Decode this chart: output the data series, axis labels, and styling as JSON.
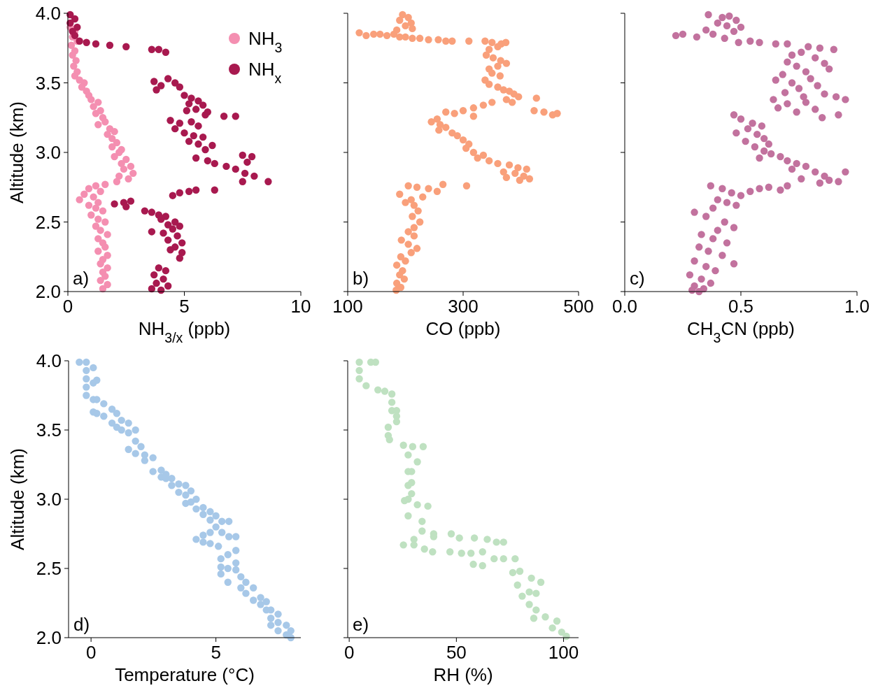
{
  "chart_data": [
    {
      "type": "scatter",
      "xlabel": "NH$_{3/x}$ (ppb)",
      "ylabel": "Altitude (km)",
      "xlim": [
        0,
        10
      ],
      "xticks": [
        0,
        5,
        10
      ],
      "ylim": [
        2,
        4
      ],
      "yticks": [
        {
          "value": 2,
          "label": "2.0"
        },
        2.5,
        {
          "value": 3,
          "label": "3.0"
        },
        3.5,
        {
          "value": 4,
          "label": "4.0"
        }
      ],
      "marker": "circle",
      "legend": "top right",
      "annotations": [
        "a)"
      ],
      "series": [
        {
          "name": "NH$_{3}$",
          "color": "#f48fb1",
          "x": [
            0.1,
            0.3,
            0.2,
            0.4,
            0.15,
            0.3,
            0.2,
            0.35,
            0.25,
            0.4,
            0.3,
            0.5,
            0.7,
            0.6,
            0.8,
            0.9,
            1.0,
            1.3,
            1.1,
            1.4,
            1.2,
            1.5,
            1.6,
            1.3,
            1.8,
            2.0,
            1.7,
            1.9,
            2.1,
            1.9,
            2.3,
            2.2,
            2.0,
            2.5,
            2.3,
            2.7,
            2.4,
            2.8,
            2.2,
            2.6,
            2.1,
            1.6,
            1.2,
            0.9,
            1.4,
            0.7,
            1.1,
            0.5,
            1.3,
            0.9,
            1.2,
            1.5,
            1.0,
            1.3,
            1.6,
            1.2,
            1.4,
            1.7,
            1.3,
            1.5,
            1.6,
            1.3,
            1.7,
            1.5,
            1.4,
            1.7,
            1.5,
            1.6,
            1.4,
            1.7,
            1.5
          ],
          "values": [
            3.9,
            3.87,
            3.83,
            3.8,
            3.77,
            3.73,
            3.7,
            3.66,
            3.62,
            3.58,
            3.55,
            3.52,
            3.5,
            3.47,
            3.44,
            3.41,
            3.38,
            3.36,
            3.33,
            3.3,
            3.28,
            3.25,
            3.22,
            3.2,
            3.17,
            3.15,
            3.13,
            3.1,
            3.07,
            3.04,
            3.02,
            3.0,
            2.97,
            2.95,
            2.92,
            2.9,
            2.88,
            2.85,
            2.83,
            2.81,
            2.79,
            2.77,
            2.76,
            2.74,
            2.72,
            2.7,
            2.68,
            2.66,
            2.64,
            2.62,
            2.6,
            2.58,
            2.55,
            2.52,
            2.5,
            2.47,
            2.44,
            2.41,
            2.38,
            2.35,
            2.32,
            2.29,
            2.26,
            2.23,
            2.2,
            2.17,
            2.14,
            2.11,
            2.08,
            2.05,
            2.02
          ]
        },
        {
          "name": "NH$_{x}$",
          "color": "#a8194f",
          "x": [
            0.1,
            0.3,
            0.1,
            0.4,
            0.2,
            0.3,
            0.5,
            0.8,
            1.2,
            1.8,
            2.5,
            3.6,
            3.9,
            4.2,
            3.7,
            4.0,
            4.3,
            4.6,
            4.8,
            3.8,
            5.0,
            5.3,
            5.6,
            5.2,
            5.8,
            5.5,
            5.1,
            6.0,
            5.9,
            6.7,
            7.2,
            4.4,
            4.8,
            5.3,
            5.6,
            4.6,
            5.0,
            5.4,
            5.8,
            5.2,
            5.6,
            6.2,
            5.9,
            5.5,
            6.0,
            6.3,
            6.8,
            7.5,
            7.9,
            7.7,
            7.2,
            7.6,
            8.0,
            7.5,
            8.6,
            6.3,
            4.8,
            5.2,
            5.5,
            4.5,
            2.0,
            2.4,
            2.7,
            2.5,
            3.3,
            3.6,
            3.9,
            4.2,
            4.0,
            4.6,
            4.3,
            4.8,
            4.5,
            3.6,
            4.1,
            4.7,
            4.3,
            4.9,
            4.6,
            4.4,
            4.9,
            4.8,
            3.9,
            4.2,
            3.7,
            4.1,
            3.8,
            4.3,
            3.6,
            4.0
          ],
          "values": [
            3.99,
            3.96,
            3.93,
            3.9,
            3.87,
            3.84,
            3.8,
            3.79,
            3.78,
            3.77,
            3.76,
            3.74,
            3.74,
            3.72,
            3.51,
            3.48,
            3.53,
            3.5,
            3.47,
            3.45,
            3.41,
            3.39,
            3.37,
            3.35,
            3.34,
            3.31,
            3.3,
            3.29,
            3.27,
            3.26,
            3.26,
            3.23,
            3.21,
            3.22,
            3.19,
            3.17,
            3.14,
            3.12,
            3.11,
            3.08,
            3.06,
            3.05,
            3.02,
            2.96,
            2.94,
            2.92,
            2.9,
            2.98,
            2.97,
            2.93,
            2.88,
            2.85,
            2.83,
            2.79,
            2.79,
            2.73,
            2.71,
            2.72,
            2.73,
            2.69,
            2.63,
            2.64,
            2.65,
            2.61,
            2.58,
            2.57,
            2.55,
            2.54,
            2.52,
            2.5,
            2.48,
            2.47,
            2.45,
            2.43,
            2.42,
            2.4,
            2.37,
            2.35,
            2.32,
            2.3,
            2.28,
            2.24,
            2.17,
            2.15,
            2.12,
            2.09,
            2.06,
            2.04,
            2.02,
            2.01
          ]
        }
      ]
    },
    {
      "type": "scatter",
      "xlabel": "CO (ppb)",
      "xlim": [
        100,
        500
      ],
      "xticks": [
        100,
        300,
        500
      ],
      "ylim": [
        2,
        4
      ],
      "yticks": [
        2,
        2.5,
        3,
        3.5,
        4
      ],
      "tick_labels": "x",
      "marker": "circle",
      "annotations": [
        "b)"
      ],
      "series": [
        {
          "color": "#f9a07b",
          "x": [
            195,
            205,
            190,
            210,
            200,
            212,
            185,
            120,
            132,
            145,
            156,
            168,
            180,
            190,
            200,
            212,
            225,
            240,
            257,
            270,
            281,
            310,
            338,
            350,
            366,
            374,
            360,
            345,
            340,
            352,
            365,
            375,
            360,
            345,
            350,
            364,
            338,
            345,
            360,
            370,
            380,
            388,
            396,
            375,
            385,
            427,
            423,
            440,
            455,
            463,
            350,
            335,
            318,
            300,
            285,
            270,
            318,
            255,
            245,
            260,
            270,
            258,
            281,
            290,
            300,
            310,
            305,
            318,
            335,
            325,
            345,
            360,
            380,
            395,
            410,
            370,
            390,
            405,
            375,
            398,
            415,
            306,
            265,
            205,
            220,
            240,
            255,
            190,
            230,
            210,
            200,
            215,
            222,
            212,
            225,
            215,
            205,
            215,
            193,
            205,
            220,
            210,
            192,
            200,
            185,
            195,
            190,
            198,
            185,
            192,
            184
          ],
          "values": [
            3.99,
            3.97,
            3.95,
            3.93,
            3.91,
            3.89,
            3.88,
            3.86,
            3.84,
            3.85,
            3.85,
            3.84,
            3.85,
            3.83,
            3.83,
            3.82,
            3.82,
            3.81,
            3.81,
            3.8,
            3.8,
            3.8,
            3.8,
            3.79,
            3.78,
            3.79,
            3.76,
            3.74,
            3.7,
            3.68,
            3.66,
            3.64,
            3.62,
            3.6,
            3.57,
            3.55,
            3.52,
            3.49,
            3.47,
            3.45,
            3.44,
            3.42,
            3.4,
            3.38,
            3.36,
            3.39,
            3.3,
            3.29,
            3.27,
            3.28,
            3.36,
            3.34,
            3.32,
            3.3,
            3.28,
            3.29,
            3.26,
            3.24,
            3.22,
            3.2,
            3.18,
            3.16,
            3.14,
            3.12,
            3.09,
            3.06,
            3.03,
            3.0,
            2.98,
            2.96,
            2.94,
            2.92,
            2.91,
            2.89,
            2.88,
            2.86,
            2.85,
            2.83,
            2.82,
            2.8,
            2.81,
            2.76,
            2.77,
            2.76,
            2.75,
            2.74,
            2.72,
            2.7,
            2.68,
            2.66,
            2.64,
            2.62,
            2.58,
            2.54,
            2.5,
            2.46,
            2.43,
            2.4,
            2.37,
            2.34,
            2.31,
            2.28,
            2.25,
            2.22,
            2.19,
            2.15,
            2.12,
            2.09,
            2.06,
            2.03,
            2.01
          ]
        }
      ]
    },
    {
      "type": "scatter",
      "xlabel": "CH$_{3}$CN (ppb)",
      "xlim": [
        0,
        1
      ],
      "xticks": [
        {
          "value": 0,
          "label": "0.0"
        },
        0.5,
        {
          "value": 1,
          "label": "1.0"
        }
      ],
      "ylim": [
        2,
        4
      ],
      "yticks": [
        2,
        2.5,
        3,
        3.5,
        4
      ],
      "tick_labels": "x",
      "marker": "circle",
      "annotations": [
        "c)"
      ],
      "series": [
        {
          "color": "#c2729e",
          "x": [
            0.36,
            0.42,
            0.45,
            0.48,
            0.4,
            0.44,
            0.5,
            0.35,
            0.47,
            0.38,
            0.43,
            0.22,
            0.25,
            0.31,
            0.49,
            0.54,
            0.58,
            0.65,
            0.7,
            0.79,
            0.84,
            0.9,
            0.72,
            0.76,
            0.82,
            0.7,
            0.74,
            0.86,
            0.68,
            0.78,
            0.88,
            0.65,
            0.72,
            0.8,
            0.75,
            0.69,
            0.83,
            0.77,
            0.86,
            0.64,
            0.7,
            0.78,
            0.82,
            0.91,
            0.95,
            0.92,
            0.74,
            0.66,
            0.85,
            0.47,
            0.5,
            0.55,
            0.53,
            0.59,
            0.48,
            0.57,
            0.6,
            0.52,
            0.62,
            0.56,
            0.6,
            0.63,
            0.67,
            0.58,
            0.7,
            0.74,
            0.72,
            0.78,
            0.82,
            0.86,
            0.88,
            0.76,
            0.84,
            0.95,
            0.92,
            0.58,
            0.62,
            0.67,
            0.7,
            0.37,
            0.42,
            0.46,
            0.5,
            0.54,
            0.4,
            0.44,
            0.48,
            0.38,
            0.3,
            0.35,
            0.43,
            0.47,
            0.4,
            0.33,
            0.38,
            0.44,
            0.32,
            0.36,
            0.42,
            0.47,
            0.3,
            0.35,
            0.39,
            0.28,
            0.33,
            0.37,
            0.3,
            0.34,
            0.29,
            0.32
          ],
          "values": [
            3.99,
            3.97,
            3.98,
            3.95,
            3.93,
            3.91,
            3.9,
            3.88,
            3.87,
            3.85,
            3.82,
            3.84,
            3.85,
            3.83,
            3.79,
            3.8,
            3.79,
            3.78,
            3.78,
            3.76,
            3.75,
            3.74,
            3.7,
            3.72,
            3.68,
            3.65,
            3.62,
            3.64,
            3.56,
            3.58,
            3.6,
            3.52,
            3.5,
            3.53,
            3.46,
            3.43,
            3.48,
            3.4,
            3.42,
            3.38,
            3.35,
            3.36,
            3.31,
            3.4,
            3.38,
            3.27,
            3.29,
            3.32,
            3.25,
            3.27,
            3.24,
            3.21,
            3.17,
            3.19,
            3.14,
            3.13,
            3.1,
            3.08,
            3.06,
            3.04,
            3.01,
            2.99,
            2.97,
            2.96,
            2.94,
            2.92,
            2.88,
            2.9,
            2.86,
            2.83,
            2.8,
            2.81,
            2.78,
            2.86,
            2.79,
            2.74,
            2.75,
            2.73,
            2.76,
            2.76,
            2.74,
            2.71,
            2.69,
            2.72,
            2.66,
            2.64,
            2.62,
            2.6,
            2.57,
            2.54,
            2.5,
            2.46,
            2.44,
            2.41,
            2.38,
            2.35,
            2.32,
            2.29,
            2.26,
            2.2,
            2.22,
            2.18,
            2.15,
            2.12,
            2.09,
            2.06,
            2.04,
            2.02,
            2.01,
            2.0
          ]
        }
      ]
    },
    {
      "type": "scatter",
      "xlabel": "Temperature (°C)",
      "ylabel": "Altitude (km)",
      "xlim": [
        -0.9,
        8.4
      ],
      "xticks": [
        0,
        5
      ],
      "ylim": [
        2,
        4
      ],
      "yticks": [
        {
          "value": 2,
          "label": "2.0"
        },
        2.5,
        {
          "value": 3,
          "label": "3.0"
        },
        3.5,
        {
          "value": 4,
          "label": "4.0"
        }
      ],
      "marker": "circle",
      "annotations": [
        "d)"
      ],
      "series": [
        {
          "color": "#a7c8e8",
          "x": [
            -0.47,
            -0.19,
            -0.19,
            -0.19,
            -0.19,
            -0.19,
            0.09,
            0.09,
            0.09,
            0.09,
            0.23,
            0.23,
            0.23,
            0.51,
            0.51,
            0.84,
            0.84,
            1.03,
            1.03,
            1.22,
            1.22,
            1.5,
            1.5,
            1.5,
            1.78,
            1.78,
            1.78,
            2.0,
            2.15,
            2.15,
            2.48,
            2.48,
            2.81,
            2.81,
            3.0,
            3.0,
            3.23,
            3.23,
            3.51,
            3.51,
            3.79,
            3.79,
            3.79,
            4.0,
            4.0,
            4.21,
            4.21,
            4.49,
            4.49,
            4.77,
            4.77,
            5.0,
            5.0,
            5.24,
            5.24,
            5.52,
            5.52,
            4.21,
            4.49,
            4.49,
            4.77,
            4.77,
            5.1,
            5.2,
            5.2,
            5.2,
            5.48,
            5.48,
            5.48,
            5.8,
            5.8,
            5.8,
            5.8,
            6.0,
            6.0,
            6.2,
            6.2,
            6.5,
            6.5,
            6.79,
            6.79,
            7.02,
            7.02,
            7.2,
            7.2,
            7.2,
            7.49,
            7.49,
            7.49,
            7.82,
            7.82,
            8.0,
            8.0
          ],
          "values": [
            3.99,
            3.99,
            3.93,
            3.87,
            3.81,
            3.75,
            3.95,
            3.84,
            3.72,
            3.63,
            3.86,
            3.72,
            3.62,
            3.69,
            3.6,
            3.65,
            3.55,
            3.62,
            3.52,
            3.57,
            3.5,
            3.55,
            3.48,
            3.36,
            3.5,
            3.42,
            3.33,
            3.38,
            3.32,
            3.28,
            3.3,
            3.2,
            3.21,
            3.16,
            3.18,
            3.15,
            3.15,
            3.1,
            3.11,
            3.05,
            3.1,
            3.03,
            2.97,
            3.06,
            2.98,
            3.0,
            2.93,
            2.94,
            2.89,
            2.91,
            2.85,
            2.88,
            2.8,
            2.84,
            2.76,
            2.84,
            2.73,
            2.71,
            2.74,
            2.69,
            2.76,
            2.68,
            2.66,
            2.57,
            2.51,
            2.46,
            2.6,
            2.5,
            2.4,
            2.73,
            2.63,
            2.54,
            2.49,
            2.44,
            2.36,
            2.4,
            2.32,
            2.36,
            2.27,
            2.29,
            2.24,
            2.26,
            2.2,
            2.2,
            2.14,
            2.09,
            2.17,
            2.11,
            2.05,
            2.09,
            2.02,
            2.05,
            2.0
          ]
        }
      ]
    },
    {
      "type": "scatter",
      "xlabel": "RH (%)",
      "xlim": [
        -0.7,
        107
      ],
      "xticks": [
        0,
        50,
        100
      ],
      "ylim": [
        2,
        4
      ],
      "yticks": [
        2,
        2.5,
        3,
        3.5,
        4
      ],
      "tick_labels": "x",
      "marker": "circle",
      "annotations": [
        "e)"
      ],
      "series": [
        {
          "color": "#bfe1c1",
          "x": [
            4.7,
            4.7,
            4.7,
            10.1,
            12.3,
            7.9,
            13.4,
            16.6,
            19.9,
            19.9,
            19.9,
            22.1,
            22.1,
            22.1,
            18.2,
            18.2,
            18.8,
            25.3,
            29.6,
            34.5,
            31.8,
            27.5,
            27.5,
            27.5,
            27.5,
            27.5,
            29.1,
            29.1,
            29.1,
            25.8,
            31.8,
            36.7,
            34,
            34,
            39.4,
            39.4,
            25.3,
            30.2,
            30.2,
            35.1,
            38.9,
            47.6,
            51.4,
            47,
            52.4,
            58.4,
            64.4,
            68.7,
            72,
            56.8,
            62.2,
            62.2,
            57.9,
            67.6,
            72,
            77.4,
            76.3,
            79.6,
            85,
            78.5,
            89.4,
            84,
            80.7,
            87.2,
            84,
            87.2,
            91.5,
            86.1,
            96.9,
            94.8,
            99.1,
            101.3
          ],
          "values": [
            3.99,
            3.93,
            3.87,
            3.99,
            3.99,
            3.82,
            3.79,
            3.78,
            3.76,
            3.7,
            3.64,
            3.64,
            3.6,
            3.56,
            3.52,
            3.46,
            3.43,
            3.39,
            3.38,
            3.38,
            3.27,
            3.32,
            3.2,
            3.1,
            3.0,
            2.88,
            3.2,
            3.12,
            3.04,
            2.99,
            2.96,
            2.95,
            2.84,
            2.77,
            2.75,
            2.73,
            2.67,
            2.71,
            2.67,
            2.64,
            2.62,
            2.75,
            2.72,
            2.62,
            2.61,
            2.72,
            2.71,
            2.69,
            2.69,
            2.61,
            2.62,
            2.52,
            2.53,
            2.57,
            2.57,
            2.57,
            2.47,
            2.48,
            2.43,
            2.38,
            2.4,
            2.33,
            2.3,
            2.32,
            2.24,
            2.2,
            2.15,
            2.14,
            2.12,
            2.07,
            2.04,
            2.01
          ]
        }
      ]
    }
  ]
}
